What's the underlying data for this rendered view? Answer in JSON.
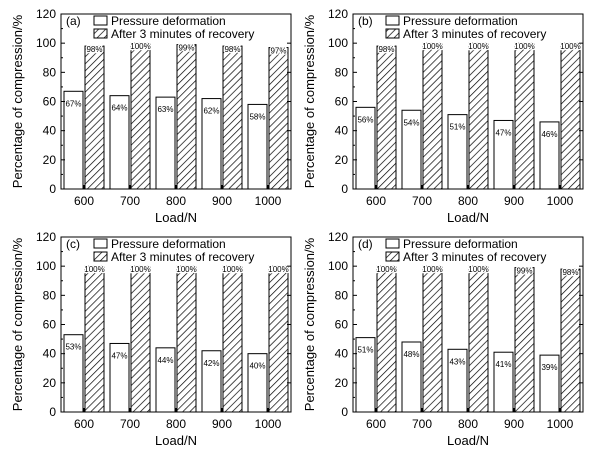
{
  "chart_data": [
    {
      "type": "bar",
      "panel_label": "(a)",
      "categories": [
        "600",
        "700",
        "800",
        "900",
        "1000"
      ],
      "series": [
        {
          "name": "Pressure deformation",
          "values": [
            67,
            64,
            63,
            62,
            58
          ],
          "labels": [
            "67%",
            "64%",
            "63%",
            "62%",
            "58%"
          ],
          "fill": "white"
        },
        {
          "name": "After 3 minutes of recovery",
          "values": [
            98,
            100,
            99,
            98,
            97
          ],
          "labels": [
            "98%",
            "100%",
            "99%",
            "98%",
            "97%"
          ],
          "fill": "hatched"
        }
      ],
      "xlabel": "Load/N",
      "ylabel": "Percentage of compression/%",
      "ylim": [
        0,
        120
      ],
      "yticks": [
        "0",
        "20",
        "40",
        "60",
        "80",
        "100",
        "120"
      ],
      "legend_position": "top"
    },
    {
      "type": "bar",
      "panel_label": "(b)",
      "categories": [
        "600",
        "700",
        "800",
        "900",
        "1000"
      ],
      "series": [
        {
          "name": "Pressure deformation",
          "values": [
            56,
            54,
            51,
            47,
            46
          ],
          "labels": [
            "56%",
            "54%",
            "51%",
            "47%",
            "46%"
          ],
          "fill": "white"
        },
        {
          "name": "After 3 minutes of recovery",
          "values": [
            98,
            100,
            100,
            100,
            100
          ],
          "labels": [
            "98%",
            "100%",
            "100%",
            "100%",
            "100%"
          ],
          "fill": "hatched"
        }
      ],
      "xlabel": "Load/N",
      "ylabel": "Percentage of compression/%",
      "ylim": [
        0,
        120
      ],
      "yticks": [
        "0",
        "20",
        "40",
        "60",
        "80",
        "100",
        "120"
      ],
      "legend_position": "top"
    },
    {
      "type": "bar",
      "panel_label": "(c)",
      "categories": [
        "600",
        "700",
        "800",
        "900",
        "1000"
      ],
      "series": [
        {
          "name": "Pressure deformation",
          "values": [
            53,
            47,
            44,
            42,
            40
          ],
          "labels": [
            "53%",
            "47%",
            "44%",
            "42%",
            "40%"
          ],
          "fill": "white"
        },
        {
          "name": "After 3 minutes of recovery",
          "values": [
            100,
            100,
            100,
            100,
            100
          ],
          "labels": [
            "100%",
            "100%",
            "100%",
            "100%",
            "100%"
          ],
          "fill": "hatched"
        }
      ],
      "xlabel": "Load/N",
      "ylabel": "Percentage of compression/%",
      "ylim": [
        0,
        120
      ],
      "yticks": [
        "0",
        "20",
        "40",
        "60",
        "80",
        "100",
        "120"
      ],
      "legend_position": "top"
    },
    {
      "type": "bar",
      "panel_label": "(d)",
      "categories": [
        "600",
        "700",
        "800",
        "900",
        "1000"
      ],
      "series": [
        {
          "name": "Pressure deformation",
          "values": [
            51,
            48,
            43,
            41,
            39
          ],
          "labels": [
            "51%",
            "48%",
            "43%",
            "41%",
            "39%"
          ],
          "fill": "white"
        },
        {
          "name": "After 3 minutes of recovery",
          "values": [
            100,
            100,
            100,
            99,
            98
          ],
          "labels": [
            "100%",
            "100%",
            "100%",
            "99%",
            "98%"
          ],
          "fill": "hatched"
        }
      ],
      "xlabel": "Load/N",
      "ylabel": "Percentage of compression/%",
      "ylim": [
        0,
        120
      ],
      "yticks": [
        "0",
        "20",
        "40",
        "60",
        "80",
        "100",
        "120"
      ],
      "legend_position": "top"
    }
  ]
}
